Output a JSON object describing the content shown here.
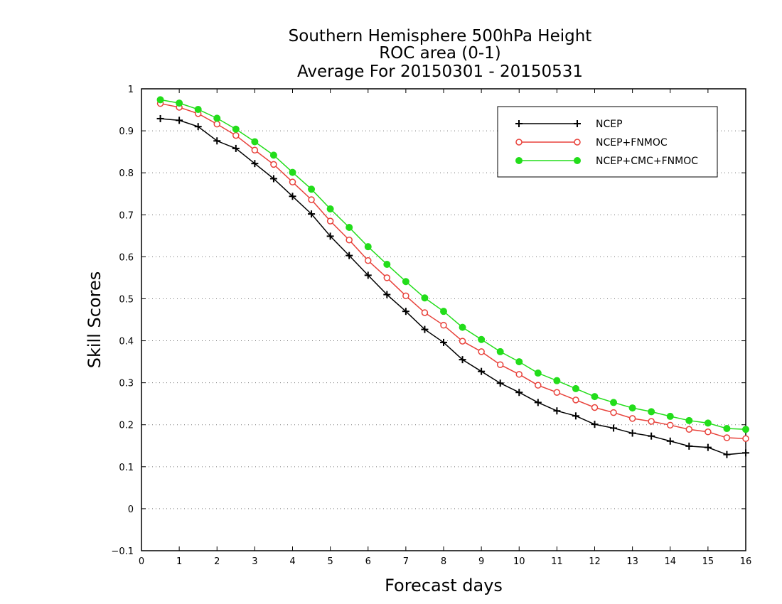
{
  "chart_data": {
    "type": "line",
    "title_lines": [
      "Southern Hemisphere 500hPa Height",
      "ROC area (0-1)",
      "Average For 20150301 - 20150531"
    ],
    "xlabel": "Forecast days",
    "ylabel": "Skill Scores",
    "xlim": [
      0,
      16
    ],
    "ylim": [
      -0.1,
      1
    ],
    "xticks": [
      "0",
      "1",
      "2",
      "3",
      "4",
      "5",
      "6",
      "7",
      "8",
      "9",
      "10",
      "11",
      "12",
      "13",
      "14",
      "15",
      "16"
    ],
    "yticks": [
      "−0.1",
      "0",
      "0.1",
      "0.2",
      "0.3",
      "0.4",
      "0.5",
      "0.6",
      "0.7",
      "0.8",
      "0.9",
      "1"
    ],
    "grid": "horizontal dotted",
    "legend_position": "top-right",
    "x": [
      0.5,
      1,
      1.5,
      2,
      2.5,
      3,
      3.5,
      4,
      4.5,
      5,
      5.5,
      6,
      6.5,
      7,
      7.5,
      8,
      8.5,
      9,
      9.5,
      10,
      10.5,
      11,
      11.5,
      12,
      12.5,
      13,
      13.5,
      14,
      14.5,
      15,
      15.5,
      16
    ],
    "series": [
      {
        "name": "NCEP",
        "color": "#000000",
        "marker": "plus",
        "values": [
          0.929,
          0.925,
          0.91,
          0.876,
          0.858,
          0.822,
          0.786,
          0.744,
          0.702,
          0.649,
          0.603,
          0.556,
          0.51,
          0.47,
          0.427,
          0.396,
          0.355,
          0.327,
          0.299,
          0.277,
          0.253,
          0.233,
          0.221,
          0.201,
          0.192,
          0.18,
          0.173,
          0.161,
          0.149,
          0.146,
          0.129,
          0.133
        ]
      },
      {
        "name": "NCEP+FNMOC",
        "color": "#e8413a",
        "marker": "open-circle",
        "values": [
          0.965,
          0.956,
          0.941,
          0.916,
          0.889,
          0.854,
          0.82,
          0.778,
          0.736,
          0.685,
          0.64,
          0.591,
          0.55,
          0.507,
          0.467,
          0.437,
          0.399,
          0.374,
          0.343,
          0.32,
          0.294,
          0.277,
          0.259,
          0.241,
          0.229,
          0.215,
          0.208,
          0.199,
          0.189,
          0.183,
          0.169,
          0.167
        ]
      },
      {
        "name": "NCEP+CMC+FNMOC",
        "color": "#22dd1a",
        "marker": "filled-circle",
        "values": [
          0.974,
          0.966,
          0.951,
          0.93,
          0.904,
          0.874,
          0.842,
          0.801,
          0.761,
          0.714,
          0.67,
          0.624,
          0.582,
          0.541,
          0.502,
          0.47,
          0.432,
          0.403,
          0.374,
          0.35,
          0.323,
          0.305,
          0.286,
          0.267,
          0.253,
          0.24,
          0.231,
          0.22,
          0.21,
          0.204,
          0.191,
          0.189
        ]
      }
    ]
  }
}
